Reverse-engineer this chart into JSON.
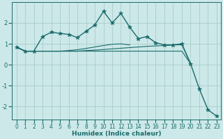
{
  "xlabel": "Humidex (Indice chaleur)",
  "background_color": "#cce8e8",
  "grid_color": "#aacccc",
  "line_color": "#1a6b6b",
  "x_values": [
    0,
    1,
    2,
    3,
    4,
    5,
    6,
    7,
    8,
    9,
    10,
    11,
    12,
    13,
    14,
    15,
    16,
    17,
    18,
    19,
    20,
    21,
    22,
    23
  ],
  "series_with_markers": [
    0.85,
    0.65,
    0.65,
    1.35,
    1.55,
    1.5,
    1.45,
    1.3,
    1.6,
    1.9,
    2.55,
    2.0,
    2.45,
    1.8,
    1.25,
    1.35,
    1.05,
    0.95,
    0.95,
    1.0,
    0.05,
    -1.15,
    -2.15,
    -2.45
  ],
  "series_flat1": [
    0.85,
    0.65,
    0.65,
    0.65,
    0.65,
    0.65,
    0.65,
    0.65,
    0.65,
    0.65,
    0.65,
    0.65,
    0.65,
    0.65,
    0.65,
    0.65,
    0.65,
    0.65,
    0.65,
    0.65,
    0.05,
    null,
    null,
    null
  ],
  "series_flat2": [
    0.85,
    0.65,
    0.65,
    0.65,
    0.65,
    0.65,
    0.65,
    0.65,
    0.68,
    0.7,
    0.73,
    0.76,
    0.79,
    0.82,
    0.85,
    0.88,
    0.9,
    0.92,
    0.94,
    0.96,
    0.05,
    null,
    null,
    null
  ],
  "series_diag": [
    0.85,
    0.65,
    0.65,
    0.65,
    0.65,
    0.65,
    0.68,
    0.72,
    0.78,
    0.85,
    0.92,
    0.98,
    1.0,
    0.95,
    null,
    null,
    null,
    null,
    null,
    null,
    null,
    null,
    null,
    null
  ],
  "ylim": [
    -2.6,
    3.0
  ],
  "xlim": [
    -0.5,
    23.5
  ],
  "yticks": [
    -2,
    -1,
    0,
    1,
    2
  ],
  "xticks": [
    0,
    1,
    2,
    3,
    4,
    5,
    6,
    7,
    8,
    9,
    10,
    11,
    12,
    13,
    14,
    15,
    16,
    17,
    18,
    19,
    20,
    21,
    22,
    23
  ],
  "xlabel_fontsize": 6.5,
  "tick_fontsize": 5.5
}
